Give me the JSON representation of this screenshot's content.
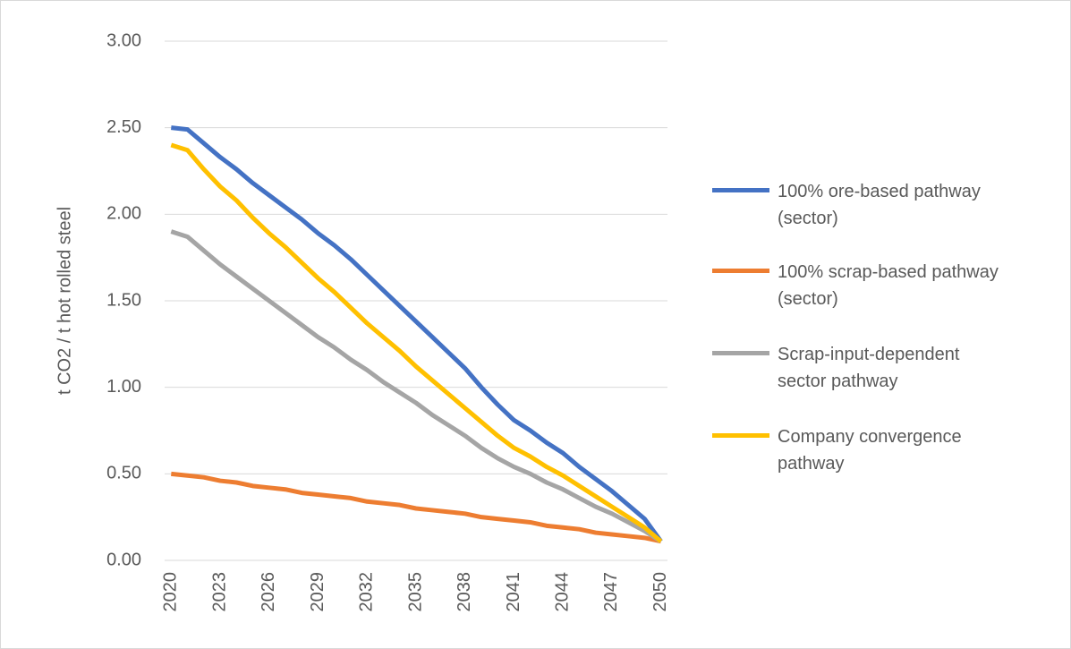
{
  "chart_data": {
    "type": "line",
    "y_label": "t CO2 / t hot rolled steel",
    "x": [
      2020,
      2021,
      2022,
      2023,
      2024,
      2025,
      2026,
      2027,
      2028,
      2029,
      2030,
      2031,
      2032,
      2033,
      2034,
      2035,
      2036,
      2037,
      2038,
      2039,
      2040,
      2041,
      2042,
      2043,
      2044,
      2045,
      2046,
      2047,
      2048,
      2049,
      2050
    ],
    "xlim": [
      2019.6,
      2050.4
    ],
    "xticks": [
      2020,
      2023,
      2026,
      2029,
      2032,
      2035,
      2038,
      2041,
      2044,
      2047,
      2050
    ],
    "ylim": [
      0,
      3
    ],
    "yticks": [
      {
        "value": 0,
        "label": "0.00"
      },
      {
        "value": 0.5,
        "label": "0.50"
      },
      {
        "value": 1,
        "label": "1.00"
      },
      {
        "value": 1.5,
        "label": "1.50"
      },
      {
        "value": 2,
        "label": "2.00"
      },
      {
        "value": 2.5,
        "label": "2.50"
      },
      {
        "value": 3,
        "label": "3.00"
      }
    ],
    "grid": true,
    "legend": "right",
    "series": [
      {
        "name": "100% ore-based pathway (sector)",
        "color": "#4472c4",
        "values": [
          2.5,
          2.49,
          2.41,
          2.33,
          2.26,
          2.18,
          2.11,
          2.04,
          1.97,
          1.89,
          1.82,
          1.74,
          1.65,
          1.56,
          1.47,
          1.38,
          1.29,
          1.2,
          1.11,
          1.0,
          0.9,
          0.81,
          0.75,
          0.68,
          0.62,
          0.54,
          0.47,
          0.4,
          0.32,
          0.24,
          0.11
        ]
      },
      {
        "name": "100% scrap-based pathway (sector)",
        "color": "#ed7d31",
        "values": [
          0.5,
          0.49,
          0.48,
          0.46,
          0.45,
          0.43,
          0.42,
          0.41,
          0.39,
          0.38,
          0.37,
          0.36,
          0.34,
          0.33,
          0.32,
          0.3,
          0.29,
          0.28,
          0.27,
          0.25,
          0.24,
          0.23,
          0.22,
          0.2,
          0.19,
          0.18,
          0.16,
          0.15,
          0.14,
          0.13,
          0.11
        ]
      },
      {
        "name": "Scrap-input-dependent sector pathway",
        "color": "#a5a5a5",
        "values": [
          1.9,
          1.87,
          1.79,
          1.71,
          1.64,
          1.57,
          1.5,
          1.43,
          1.36,
          1.29,
          1.23,
          1.16,
          1.1,
          1.03,
          0.97,
          0.91,
          0.84,
          0.78,
          0.72,
          0.65,
          0.59,
          0.54,
          0.5,
          0.45,
          0.41,
          0.36,
          0.31,
          0.27,
          0.22,
          0.17,
          0.11
        ]
      },
      {
        "name": "Company convergence pathway",
        "color": "#ffc000",
        "values": [
          2.4,
          2.37,
          2.26,
          2.16,
          2.08,
          1.98,
          1.89,
          1.81,
          1.72,
          1.63,
          1.55,
          1.46,
          1.37,
          1.29,
          1.21,
          1.12,
          1.04,
          0.96,
          0.88,
          0.8,
          0.72,
          0.65,
          0.6,
          0.54,
          0.49,
          0.43,
          0.37,
          0.31,
          0.25,
          0.19,
          0.11
        ]
      }
    ]
  }
}
